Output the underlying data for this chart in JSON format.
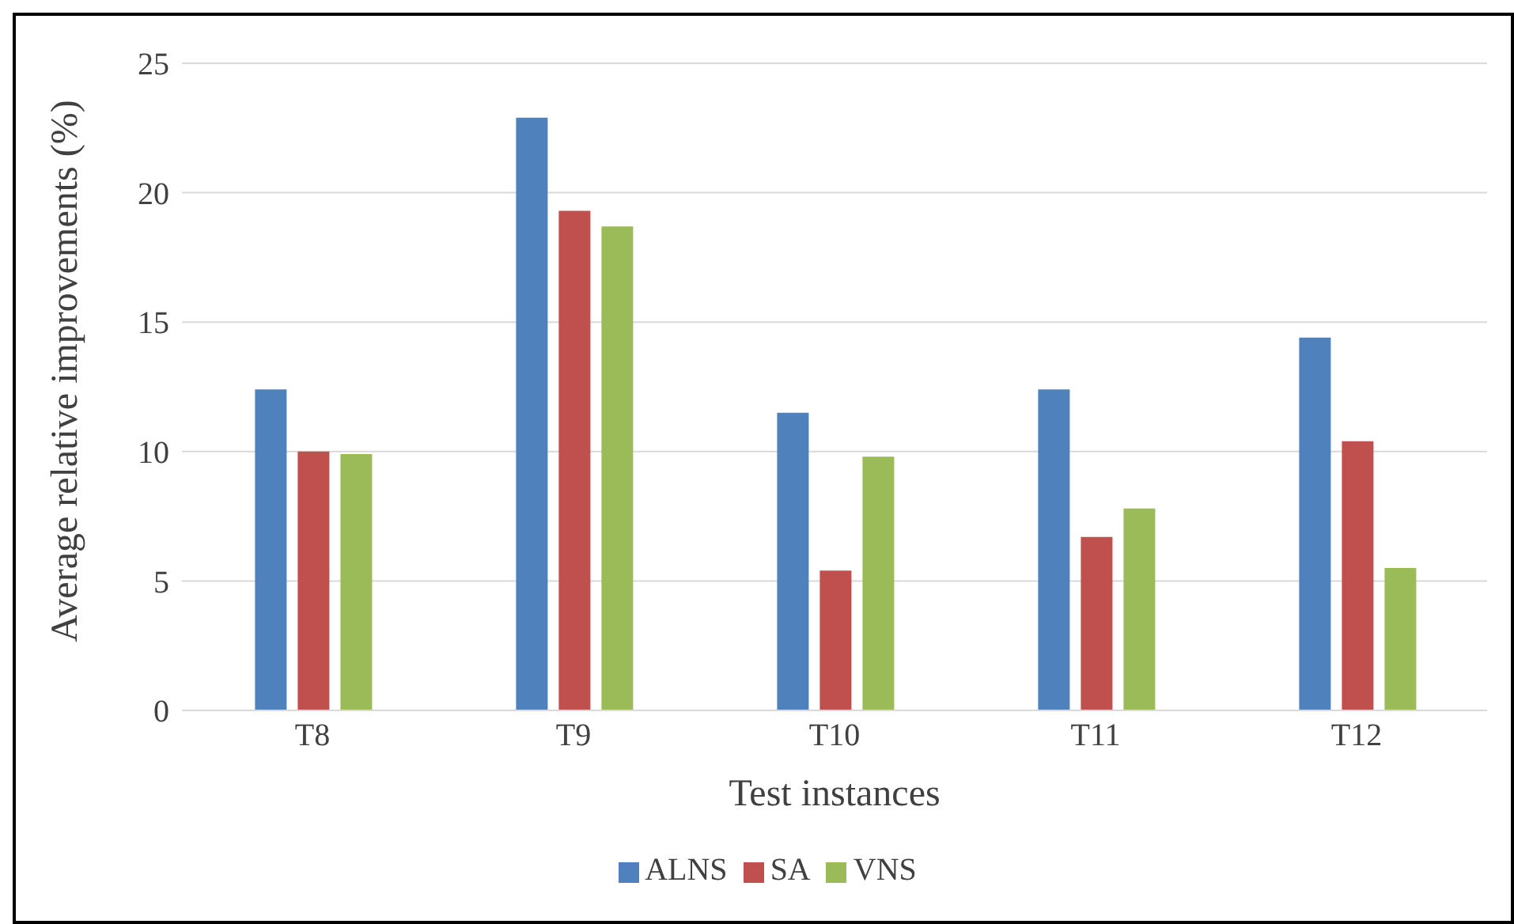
{
  "chart_data": {
    "type": "bar",
    "xlabel": "Test instances",
    "ylabel": "Average relative improvements (%)",
    "categories": [
      "T8",
      "T9",
      "T10",
      "T11",
      "T12"
    ],
    "series": [
      {
        "name": "ALNS",
        "color": "#4f81bd",
        "values": [
          12.4,
          22.9,
          11.5,
          12.4,
          14.4
        ]
      },
      {
        "name": "SA",
        "color": "#c0504d",
        "values": [
          10.0,
          19.3,
          5.4,
          6.7,
          10.4
        ]
      },
      {
        "name": "VNS",
        "color": "#9bbb59",
        "values": [
          9.9,
          18.7,
          9.8,
          7.8,
          5.5
        ]
      }
    ],
    "ylim": [
      0,
      25
    ],
    "yticks": [
      0,
      5,
      10,
      15,
      20,
      25
    ],
    "grid": "y",
    "legend": "bottom"
  }
}
